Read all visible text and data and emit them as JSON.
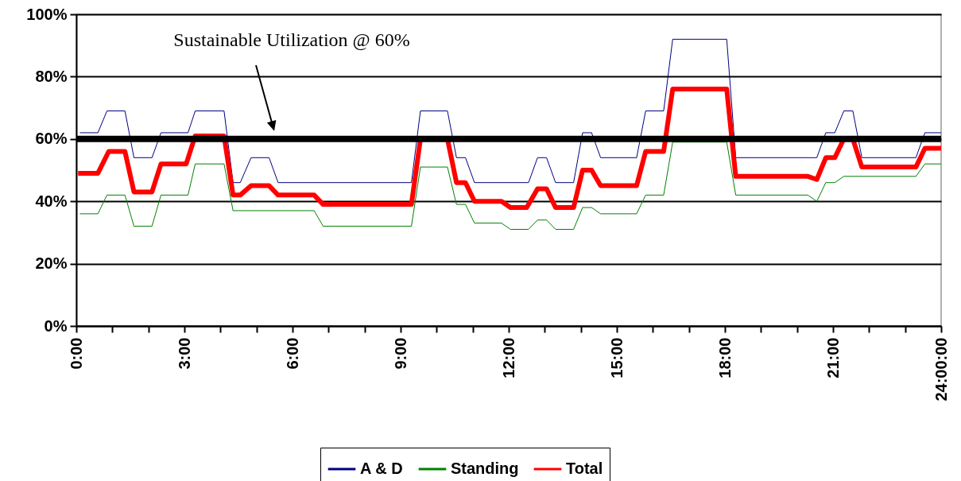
{
  "chart_data": {
    "type": "line",
    "xlim": [
      0,
      24
    ],
    "xticks": [
      {
        "value": 0,
        "label": "0:00"
      },
      {
        "value": 1,
        "label": null
      },
      {
        "value": 2,
        "label": null
      },
      {
        "value": 3,
        "label": "3:00"
      },
      {
        "value": 4,
        "label": null
      },
      {
        "value": 5,
        "label": null
      },
      {
        "value": 6,
        "label": "6:00"
      },
      {
        "value": 7,
        "label": null
      },
      {
        "value": 8,
        "label": null
      },
      {
        "value": 9,
        "label": "9:00"
      },
      {
        "value": 10,
        "label": null
      },
      {
        "value": 11,
        "label": null
      },
      {
        "value": 12,
        "label": "12:00"
      },
      {
        "value": 13,
        "label": null
      },
      {
        "value": 14,
        "label": null
      },
      {
        "value": 15,
        "label": "15:00"
      },
      {
        "value": 16,
        "label": null
      },
      {
        "value": 17,
        "label": null
      },
      {
        "value": 18,
        "label": "18:00"
      },
      {
        "value": 19,
        "label": null
      },
      {
        "value": 20,
        "label": null
      },
      {
        "value": 21,
        "label": "21:00"
      },
      {
        "value": 22,
        "label": null
      },
      {
        "value": 23,
        "label": null
      },
      {
        "value": 24,
        "label": "24:00:00"
      }
    ],
    "ylim": [
      0,
      100
    ],
    "yticks": [
      {
        "value": 0,
        "label": "0%"
      },
      {
        "value": 20,
        "label": "20%"
      },
      {
        "value": 40,
        "label": "40%"
      },
      {
        "value": 60,
        "label": "60%"
      },
      {
        "value": 80,
        "label": "80%"
      },
      {
        "value": 100,
        "label": "100%"
      }
    ],
    "grid": "y",
    "legend": "bottom",
    "series": [
      {
        "name": "A & D",
        "color": "#000080",
        "x": [
          0.1,
          0.6,
          0.85,
          1.35,
          1.6,
          2.1,
          2.35,
          3.1,
          3.3,
          4.1,
          4.35,
          4.55,
          4.85,
          5.35,
          5.6,
          9.3,
          9.55,
          10.3,
          10.55,
          10.8,
          11.05,
          12.55,
          12.8,
          13.05,
          13.3,
          13.8,
          14.05,
          14.3,
          14.55,
          15.55,
          15.8,
          16.3,
          16.55,
          18.05,
          18.3,
          20.55,
          20.8,
          21.05,
          21.3,
          21.55,
          21.8,
          23.3,
          23.55,
          24.0
        ],
        "values": [
          62,
          62,
          69,
          69,
          54,
          54,
          62,
          62,
          69,
          69,
          46,
          46,
          54,
          54,
          46,
          46,
          69,
          69,
          54,
          54,
          46,
          46,
          54,
          54,
          46,
          46,
          62,
          62,
          54,
          54,
          69,
          69,
          92,
          92,
          54,
          54,
          62,
          62,
          69,
          69,
          54,
          54,
          62,
          62
        ]
      },
      {
        "name": "Standing",
        "color": "#008000",
        "x": [
          0.1,
          0.6,
          0.85,
          1.35,
          1.6,
          2.1,
          2.35,
          3.1,
          3.3,
          4.1,
          4.35,
          6.6,
          6.85,
          9.3,
          9.55,
          10.3,
          10.55,
          10.8,
          11.05,
          11.8,
          12.05,
          12.55,
          12.8,
          13.05,
          13.3,
          13.8,
          14.05,
          14.3,
          14.55,
          15.55,
          15.8,
          16.3,
          16.55,
          18.05,
          18.3,
          20.3,
          20.55,
          20.8,
          21.05,
          21.3,
          23.3,
          23.55,
          24.0
        ],
        "values": [
          36,
          36,
          42,
          42,
          32,
          32,
          42,
          42,
          52,
          52,
          37,
          37,
          32,
          32,
          51,
          51,
          39,
          39,
          33,
          33,
          31,
          31,
          34,
          34,
          31,
          31,
          38,
          38,
          36,
          36,
          42,
          42,
          59,
          59,
          42,
          42,
          40,
          46,
          46,
          48,
          48,
          52,
          52
        ]
      },
      {
        "name": "Total",
        "color": "#ff0000",
        "x": [
          0.05,
          0.6,
          0.9,
          1.35,
          1.6,
          2.1,
          2.35,
          3.05,
          3.3,
          4.1,
          4.35,
          4.55,
          4.85,
          5.35,
          5.6,
          6.6,
          6.85,
          9.3,
          9.55,
          10.3,
          10.55,
          10.8,
          11.05,
          11.8,
          12.05,
          12.5,
          12.8,
          13.05,
          13.3,
          13.8,
          14.05,
          14.3,
          14.55,
          15.55,
          15.8,
          16.3,
          16.55,
          18.05,
          18.3,
          20.3,
          20.55,
          20.8,
          21.05,
          21.3,
          21.55,
          21.8,
          23.3,
          23.55,
          24.0
        ],
        "values": [
          49,
          49,
          56,
          56,
          43,
          43,
          52,
          52,
          61,
          61,
          42,
          42,
          45,
          45,
          42,
          42,
          39,
          39,
          60,
          60,
          46,
          46,
          40,
          40,
          38,
          38,
          44,
          44,
          38,
          38,
          50,
          50,
          45,
          45,
          56,
          56,
          76,
          76,
          48,
          48,
          47,
          54,
          54,
          60,
          60,
          51,
          51,
          57,
          57
        ]
      }
    ],
    "ref_lines": [
      {
        "axis": "y",
        "value": 60,
        "color": "#000000"
      }
    ],
    "annotations": [
      "Sustainable Utilization @ 60%"
    ]
  }
}
